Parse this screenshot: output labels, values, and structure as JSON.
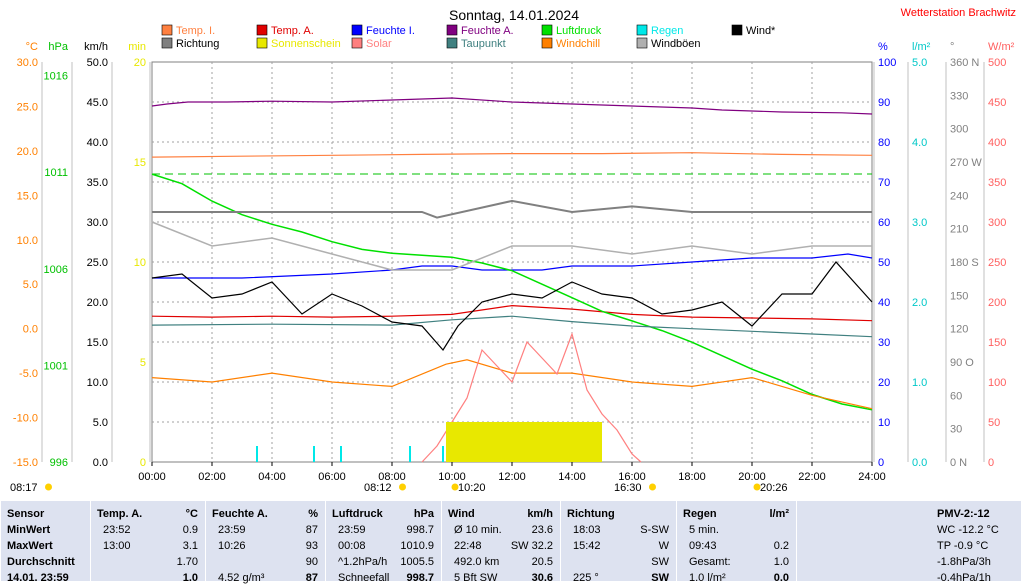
{
  "station": "Wetterstation Brachwitz",
  "chart_data": {
    "type": "line",
    "title": "Sonntag, 14.01.2024",
    "x_ticks": [
      "00:00",
      "02:00",
      "04:00",
      "06:00",
      "08:00",
      "10:00",
      "12:00",
      "14:00",
      "16:00",
      "18:00",
      "20:00",
      "22:00",
      "24:00"
    ],
    "axes": {
      "temp": {
        "label": "°C",
        "color": "#ff8000",
        "ticks": [
          "30.0",
          "25.0",
          "20.0",
          "15.0",
          "10.0",
          "5.0",
          "0.0",
          "-5.0",
          "-10.0",
          "-15.0"
        ],
        "range": [
          -15,
          30
        ]
      },
      "pressure": {
        "label": "hPa",
        "color": "#00c000",
        "ticks": [
          "1016",
          "1011",
          "1006",
          "1001",
          "996"
        ],
        "range": [
          996,
          1016.7
        ]
      },
      "wind": {
        "label": "km/h",
        "color": "#000000",
        "ticks": [
          "50.0",
          "45.0",
          "40.0",
          "35.0",
          "30.0",
          "25.0",
          "20.0",
          "15.0",
          "10.0",
          "5.0",
          "0.0"
        ],
        "range": [
          0,
          50
        ]
      },
      "sun": {
        "label": "min",
        "color": "#e8e800",
        "ticks": [
          "20",
          "15",
          "10",
          "5",
          "0"
        ],
        "range": [
          0,
          20
        ]
      },
      "humidity": {
        "label": "%",
        "color": "#0000ff",
        "ticks": [
          "100",
          "90",
          "80",
          "70",
          "60",
          "50",
          "40",
          "30",
          "20",
          "10",
          "0"
        ],
        "range": [
          0,
          100
        ]
      },
      "rain": {
        "label": "l/m²",
        "color": "#00c8c8",
        "ticks": [
          "5.0",
          "4.0",
          "3.0",
          "2.0",
          "1.0",
          "0.0"
        ],
        "range": [
          0,
          5
        ]
      },
      "direction": {
        "label": "°",
        "color": "#808080",
        "ticks": [
          "360 N",
          "330",
          "300",
          "270 W",
          "240",
          "210",
          "180 S",
          "150",
          "120",
          "90 O",
          "60",
          "30",
          "0 N"
        ],
        "range": [
          0,
          360
        ]
      },
      "solar": {
        "label": "W/m²",
        "color": "#ff6060",
        "ticks": [
          "500",
          "450",
          "400",
          "350",
          "300",
          "250",
          "200",
          "150",
          "100",
          "50",
          "0"
        ],
        "range": [
          0,
          500
        ]
      }
    },
    "legend": [
      {
        "label": "Temp. I.",
        "color": "#ff8040"
      },
      {
        "label": "Temp. A.",
        "color": "#e00000"
      },
      {
        "label": "Feuchte I.",
        "color": "#0000ff"
      },
      {
        "label": "Feuchte A.",
        "color": "#800080"
      },
      {
        "label": "Luftdruck",
        "color": "#00e000"
      },
      {
        "label": "Regen",
        "color": "#00e8e8"
      },
      {
        "label": "Wind*",
        "color": "#000000"
      },
      {
        "label": "Richtung",
        "color": "#808080"
      },
      {
        "label": "Sonnenschein",
        "color": "#e8e800"
      },
      {
        "label": "Solar",
        "color": "#ff8080"
      },
      {
        "label": "Taupunkt",
        "color": "#408080"
      },
      {
        "label": "Windchill",
        "color": "#ff8000"
      },
      {
        "label": "Windböen",
        "color": "#b0b0b0"
      }
    ],
    "series": [
      {
        "name": "Temp. I.",
        "axis": "temp",
        "points": [
          [
            0,
            19.3
          ],
          [
            3,
            19.4
          ],
          [
            6,
            19.5
          ],
          [
            9,
            19.6
          ],
          [
            12,
            19.7
          ],
          [
            15,
            19.7
          ],
          [
            18,
            19.8
          ],
          [
            21,
            19.6
          ],
          [
            24,
            19.5
          ]
        ]
      },
      {
        "name": "Temp. A.",
        "axis": "temp",
        "points": [
          [
            0,
            1.4
          ],
          [
            2,
            1.3
          ],
          [
            4,
            1.4
          ],
          [
            6,
            1.3
          ],
          [
            8,
            1.4
          ],
          [
            10,
            1.6
          ],
          [
            12,
            2.6
          ],
          [
            14,
            2.2
          ],
          [
            16,
            1.6
          ],
          [
            18,
            1.3
          ],
          [
            20,
            1.2
          ],
          [
            22,
            1.1
          ],
          [
            24,
            0.9
          ]
        ]
      },
      {
        "name": "Feuchte I.",
        "axis": "humidity",
        "points": [
          [
            0,
            46
          ],
          [
            3,
            46
          ],
          [
            6,
            47
          ],
          [
            8,
            48
          ],
          [
            9,
            49
          ],
          [
            10,
            49
          ],
          [
            11,
            48
          ],
          [
            12,
            48
          ],
          [
            13,
            48
          ],
          [
            14,
            49
          ],
          [
            16,
            49
          ],
          [
            18,
            50
          ],
          [
            20,
            51
          ],
          [
            22,
            51
          ],
          [
            23.2,
            52
          ],
          [
            24,
            51
          ]
        ]
      },
      {
        "name": "Feuchte A.",
        "axis": "humidity",
        "points": [
          [
            0,
            89
          ],
          [
            0.5,
            89.5
          ],
          [
            1.2,
            90
          ],
          [
            2.5,
            90
          ],
          [
            4,
            90.2
          ],
          [
            6,
            90
          ],
          [
            8,
            90.5
          ],
          [
            10,
            91
          ],
          [
            12,
            90
          ],
          [
            14,
            89.5
          ],
          [
            16,
            89
          ],
          [
            18,
            88.5
          ],
          [
            19,
            88
          ],
          [
            21,
            87.5
          ],
          [
            23,
            87.3
          ],
          [
            24,
            87
          ]
        ]
      },
      {
        "name": "Luftdruck",
        "axis": "pressure",
        "points": [
          [
            0,
            1010.9
          ],
          [
            1,
            1010.4
          ],
          [
            2,
            1009.5
          ],
          [
            3,
            1008.8
          ],
          [
            4,
            1008.3
          ],
          [
            5,
            1007.9
          ],
          [
            6,
            1007.4
          ],
          [
            7,
            1007.0
          ],
          [
            8,
            1006.8
          ],
          [
            9,
            1006.7
          ],
          [
            10,
            1006.6
          ],
          [
            11,
            1006.3
          ],
          [
            12,
            1005.9
          ],
          [
            13,
            1005.2
          ],
          [
            14,
            1004.5
          ],
          [
            15,
            1003.8
          ],
          [
            16,
            1003.3
          ],
          [
            17,
            1002.8
          ],
          [
            18,
            1002.2
          ],
          [
            19,
            1001.5
          ],
          [
            20,
            1000.8
          ],
          [
            21,
            1000.2
          ],
          [
            22,
            999.5
          ],
          [
            23,
            999.0
          ],
          [
            24,
            998.7
          ]
        ]
      },
      {
        "name": "Taupunkt",
        "axis": "temp",
        "points": [
          [
            0,
            0.4
          ],
          [
            4,
            0.5
          ],
          [
            8,
            0.4
          ],
          [
            10,
            1.0
          ],
          [
            12,
            1.4
          ],
          [
            14,
            0.8
          ],
          [
            16,
            0.3
          ],
          [
            18,
            0.0
          ],
          [
            20,
            -0.3
          ],
          [
            22,
            -0.6
          ],
          [
            24,
            -0.9
          ]
        ]
      },
      {
        "name": "Wind*",
        "axis": "wind",
        "points": [
          [
            0,
            23
          ],
          [
            1,
            23.5
          ],
          [
            2,
            20.5
          ],
          [
            3,
            21
          ],
          [
            4,
            22.5
          ],
          [
            5,
            18.5
          ],
          [
            6,
            21
          ],
          [
            7,
            19.5
          ],
          [
            8,
            17.5
          ],
          [
            9,
            17
          ],
          [
            9.7,
            14
          ],
          [
            10.2,
            17
          ],
          [
            11,
            20
          ],
          [
            12,
            21
          ],
          [
            13,
            20.5
          ],
          [
            14,
            22.5
          ],
          [
            15,
            21
          ],
          [
            16,
            20.5
          ],
          [
            17,
            18.5
          ],
          [
            18,
            19
          ],
          [
            19,
            20
          ],
          [
            20,
            17
          ],
          [
            21,
            21
          ],
          [
            22,
            21
          ],
          [
            22.8,
            25
          ],
          [
            24,
            20
          ]
        ]
      },
      {
        "name": "Windböen",
        "axis": "wind",
        "points": [
          [
            0,
            30
          ],
          [
            2,
            27
          ],
          [
            4,
            28
          ],
          [
            6,
            26
          ],
          [
            8,
            24
          ],
          [
            10,
            24
          ],
          [
            12,
            27
          ],
          [
            14,
            27
          ],
          [
            16,
            26
          ],
          [
            18,
            27
          ],
          [
            20,
            26
          ],
          [
            22,
            27
          ],
          [
            24,
            27
          ]
        ]
      },
      {
        "name": "Windchill",
        "axis": "temp",
        "points": [
          [
            0,
            -5.5
          ],
          [
            2,
            -6
          ],
          [
            4,
            -5
          ],
          [
            6,
            -6
          ],
          [
            8,
            -6.5
          ],
          [
            9.8,
            -4
          ],
          [
            10.5,
            -3.5
          ],
          [
            12,
            -5
          ],
          [
            14,
            -5
          ],
          [
            16,
            -6
          ],
          [
            18,
            -6.5
          ],
          [
            20,
            -5.5
          ],
          [
            22,
            -7.5
          ],
          [
            24,
            -9
          ]
        ]
      },
      {
        "name": "Solar",
        "axis": "solar",
        "points": [
          [
            9,
            0
          ],
          [
            9.5,
            20
          ],
          [
            10,
            50
          ],
          [
            10.5,
            80
          ],
          [
            11,
            140
          ],
          [
            11.5,
            120
          ],
          [
            12,
            100
          ],
          [
            12.5,
            150
          ],
          [
            13,
            130
          ],
          [
            13.5,
            110
          ],
          [
            14,
            160
          ],
          [
            14.5,
            90
          ],
          [
            15,
            60
          ],
          [
            15.5,
            40
          ],
          [
            16,
            10
          ],
          [
            16.3,
            0
          ]
        ]
      },
      {
        "name": "Sonnenschein",
        "axis": "sun",
        "points": [
          [
            9.8,
            2
          ],
          [
            15,
            2
          ]
        ]
      },
      {
        "name": "Richtung",
        "axis": "direction",
        "points": [
          [
            0,
            225
          ],
          [
            9,
            225
          ],
          [
            9.5,
            220
          ],
          [
            12,
            235
          ],
          [
            14,
            225
          ],
          [
            16,
            230
          ],
          [
            18,
            225
          ],
          [
            20,
            225
          ],
          [
            22,
            225
          ],
          [
            24,
            225
          ]
        ]
      }
    ],
    "rain_events": [
      3.5,
      5.4,
      6.3,
      8.6,
      9.7
    ],
    "sun_markers": {
      "sunrise": "08:17",
      "sunset": "16:30",
      "dawn": "08:12",
      "moonrise": "10:20",
      "moonset": "20:26"
    }
  },
  "table": {
    "columns": [
      {
        "header": "Sensor",
        "rows": [
          "MinWert",
          "MaxWert",
          "Durchschnitt",
          "14.01. 23:59"
        ]
      },
      {
        "header": "Temp. A.",
        "unit": "°C",
        "rows": [
          [
            "23:52",
            "0.9"
          ],
          [
            "13:00",
            "3.1"
          ],
          [
            "",
            "1.70"
          ],
          [
            "",
            "1.0"
          ]
        ]
      },
      {
        "header": "Feuchte A.",
        "unit": "%",
        "rows": [
          [
            "23:59",
            "87"
          ],
          [
            "10:26",
            "93"
          ],
          [
            "",
            "90"
          ],
          [
            "4.52 g/m³",
            "87"
          ]
        ]
      },
      {
        "header": "Luftdruck",
        "unit": "hPa",
        "rows": [
          [
            "23:59",
            "998.7"
          ],
          [
            "00:08",
            "1010.9"
          ],
          [
            "^1.2hPa/h",
            "1005.5"
          ],
          [
            "Schneefall",
            "998.7"
          ]
        ]
      },
      {
        "header": "Wind",
        "unit": "km/h",
        "rows": [
          [
            "Ø 10 min.",
            "23.6"
          ],
          [
            "22:48",
            "SW 32.2"
          ],
          [
            "492.0 km",
            "20.5"
          ],
          [
            "5 Bft SW",
            "30.6"
          ]
        ]
      },
      {
        "header": "Richtung",
        "unit": "",
        "rows": [
          [
            "18:03",
            "S-SW"
          ],
          [
            "15:42",
            "W"
          ],
          [
            "",
            "SW"
          ],
          [
            "225 °",
            "SW"
          ]
        ]
      },
      {
        "header": "Regen",
        "unit": "l/m²",
        "rows": [
          [
            "5 min.",
            ""
          ],
          [
            "09:43",
            "0.2"
          ],
          [
            "Gesamt:",
            "1.0"
          ],
          [
            "1.0 l/m²",
            "0.0"
          ]
        ]
      },
      {
        "header": "PMV-2:-12",
        "rows": [
          "WC -12.2 °C",
          "TP -0.9 °C",
          "-1.8hPa/3h",
          "-0.4hPa/1h"
        ]
      }
    ]
  }
}
